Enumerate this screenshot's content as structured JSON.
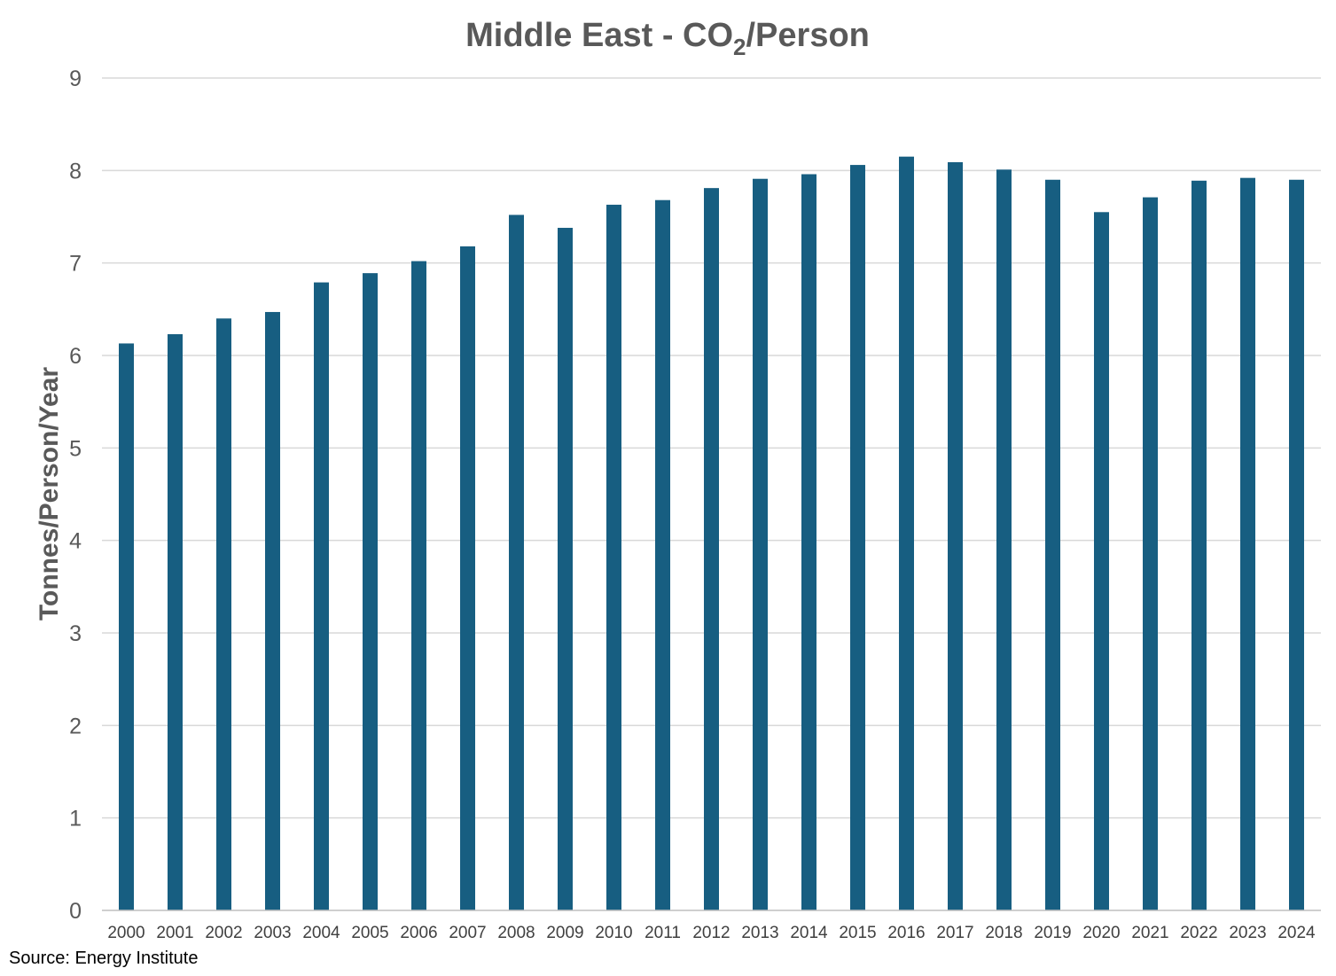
{
  "chart_data": {
    "type": "bar",
    "title_main": "Middle East - CO",
    "title_sub": "2",
    "title_tail": "/Person",
    "ylabel": "Tonnes/Person/Year",
    "xlabel": "",
    "source": "Source: Energy Institute",
    "ylim": [
      0,
      9
    ],
    "yticks": [
      0,
      1,
      2,
      3,
      4,
      5,
      6,
      7,
      8,
      9
    ],
    "grid": true,
    "legend": "none",
    "categories": [
      "2000",
      "2001",
      "2002",
      "2003",
      "2004",
      "2005",
      "2006",
      "2007",
      "2008",
      "2009",
      "2010",
      "2011",
      "2012",
      "2013",
      "2014",
      "2015",
      "2016",
      "2017",
      "2018",
      "2019",
      "2020",
      "2021",
      "2022",
      "2023",
      "2024"
    ],
    "values": [
      6.13,
      6.23,
      6.4,
      6.47,
      6.79,
      6.89,
      7.02,
      7.18,
      7.52,
      7.38,
      7.63,
      7.68,
      7.81,
      7.91,
      7.96,
      8.06,
      8.15,
      8.09,
      8.01,
      7.9,
      7.55,
      7.71,
      7.89,
      7.92,
      7.9
    ],
    "bar_color": "#175E81",
    "grid_color": "#D9D9D9",
    "axis_color": "#BFBFBF"
  }
}
